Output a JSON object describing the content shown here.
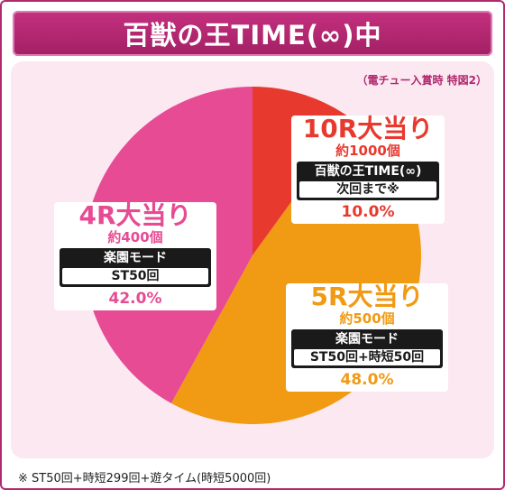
{
  "banner": {
    "title": "百獣の王TIME(∞)中"
  },
  "subcaption": "（電チュー入賞時 特図2）",
  "chart_data": {
    "type": "pie",
    "title": "百獣の王TIME(∞)中",
    "slices": [
      {
        "label": "10R大当り",
        "value": 10.0,
        "pct_label": "10.0%",
        "color": "#e8392f",
        "sub": "約1000個",
        "mode": "百獣の王TIME(∞)",
        "detail": "次回まで※"
      },
      {
        "label": "5R大当り",
        "value": 48.0,
        "pct_label": "48.0%",
        "color": "#f19a13",
        "sub": "約500個",
        "mode": "楽園モード",
        "detail": "ST50回+時短50回"
      },
      {
        "label": "4R大当り",
        "value": 42.0,
        "pct_label": "42.0%",
        "color": "#e64b94",
        "sub": "約400個",
        "mode": "楽園モード",
        "detail": "ST50回"
      }
    ]
  },
  "footnote": "※ ST50回+時短299回+遊タイム(時短5000回)"
}
